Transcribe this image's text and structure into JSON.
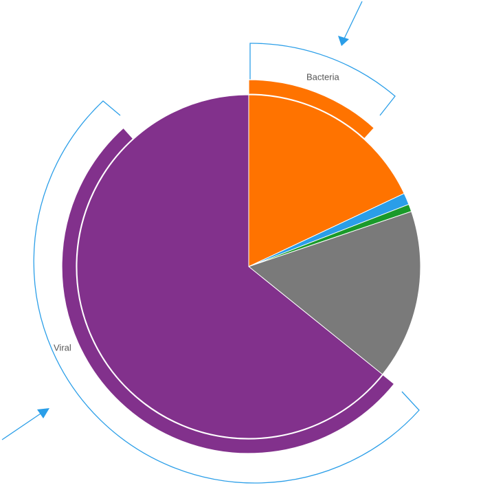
{
  "chart_data": {
    "type": "pie",
    "inner": {
      "values": [
        18,
        1.1,
        0.7,
        16,
        64.2
      ],
      "colors": [
        "#ff7300",
        "#2a9ee8",
        "#1a9a2a",
        "#7a7a7a",
        "#82318c"
      ]
    },
    "outer": {
      "categories": [
        "Bacteria",
        null,
        null,
        null,
        "Viral"
      ],
      "values": [
        11.7,
        null,
        null,
        null,
        52.5
      ],
      "colors": [
        "#ff7300",
        null,
        null,
        null,
        "#82318c"
      ]
    }
  }
}
